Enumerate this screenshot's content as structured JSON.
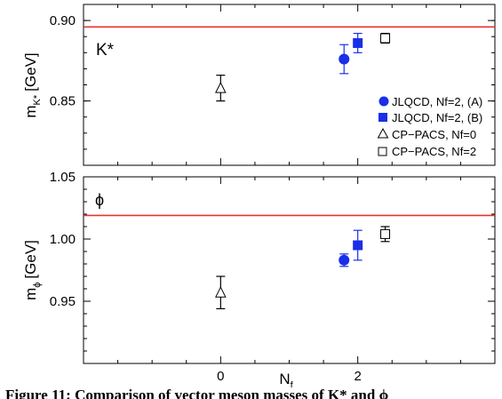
{
  "xlabel": "N",
  "xlabel_sub": "f",
  "xticks": [
    "0",
    "2"
  ],
  "caption": "Figure 11: Comparison of vector meson masses of K* and ϕ",
  "colors": {
    "experiment_line": "#e8332f",
    "jlqcd": "#1a2fe8",
    "cppacs": "#000000"
  },
  "legend": [
    {
      "label": "JLQCD, Nf=2, (A)",
      "marker": "filled-circle",
      "color": "#1a2fe8"
    },
    {
      "label": "JLQCD, Nf=2, (B)",
      "marker": "filled-square",
      "color": "#1a2fe8"
    },
    {
      "label": "CP−PACS, Nf=0",
      "marker": "open-triangle",
      "color": "#000000"
    },
    {
      "label": "CP−PACS, Nf=2",
      "marker": "open-square",
      "color": "#000000"
    }
  ],
  "chart_data": [
    {
      "type": "scatter",
      "panel_label": "K*",
      "ylabel": "m",
      "ylabel_sub": "K*",
      "ylabel_unit": "[GeV]",
      "xlim": [
        -2,
        4
      ],
      "ylim": [
        0.81,
        0.91
      ],
      "yticks": [
        "0.85",
        "0.90"
      ],
      "experiment": 0.896,
      "series": [
        {
          "name": "JLQCD, Nf=2, (A)",
          "marker": "filled-circle",
          "color": "#1a2fe8",
          "points": [
            {
              "x": 1.8,
              "y": 0.876,
              "err": 0.009
            }
          ]
        },
        {
          "name": "JLQCD, Nf=2, (B)",
          "marker": "filled-square",
          "color": "#1a2fe8",
          "points": [
            {
              "x": 2.0,
              "y": 0.886,
              "err": 0.006
            }
          ]
        },
        {
          "name": "CP−PACS, Nf=0",
          "marker": "open-triangle",
          "color": "#000000",
          "points": [
            {
              "x": 0.0,
              "y": 0.858,
              "err": 0.008
            }
          ]
        },
        {
          "name": "CP−PACS, Nf=2",
          "marker": "open-square",
          "color": "#000000",
          "points": [
            {
              "x": 2.4,
              "y": 0.889,
              "err": 0.003
            }
          ]
        }
      ]
    },
    {
      "type": "scatter",
      "panel_label": "ϕ",
      "ylabel": "m",
      "ylabel_sub": "ϕ",
      "ylabel_unit": "[GeV]",
      "xlim": [
        -2,
        4
      ],
      "ylim": [
        0.9,
        1.05
      ],
      "yticks": [
        "0.95",
        "1.00",
        "1.05"
      ],
      "experiment": 1.019,
      "series": [
        {
          "name": "JLQCD, Nf=2, (A)",
          "marker": "filled-circle",
          "color": "#1a2fe8",
          "points": [
            {
              "x": 1.8,
              "y": 0.983,
              "err": 0.005
            }
          ]
        },
        {
          "name": "JLQCD, Nf=2, (B)",
          "marker": "filled-square",
          "color": "#1a2fe8",
          "points": [
            {
              "x": 2.0,
              "y": 0.995,
              "err": 0.012
            }
          ]
        },
        {
          "name": "CP−PACS, Nf=0",
          "marker": "open-triangle",
          "color": "#000000",
          "points": [
            {
              "x": 0.0,
              "y": 0.957,
              "err": 0.013
            }
          ]
        },
        {
          "name": "CP−PACS, Nf=2",
          "marker": "open-square",
          "color": "#000000",
          "points": [
            {
              "x": 2.4,
              "y": 1.004,
              "err": 0.006
            }
          ]
        }
      ]
    }
  ]
}
